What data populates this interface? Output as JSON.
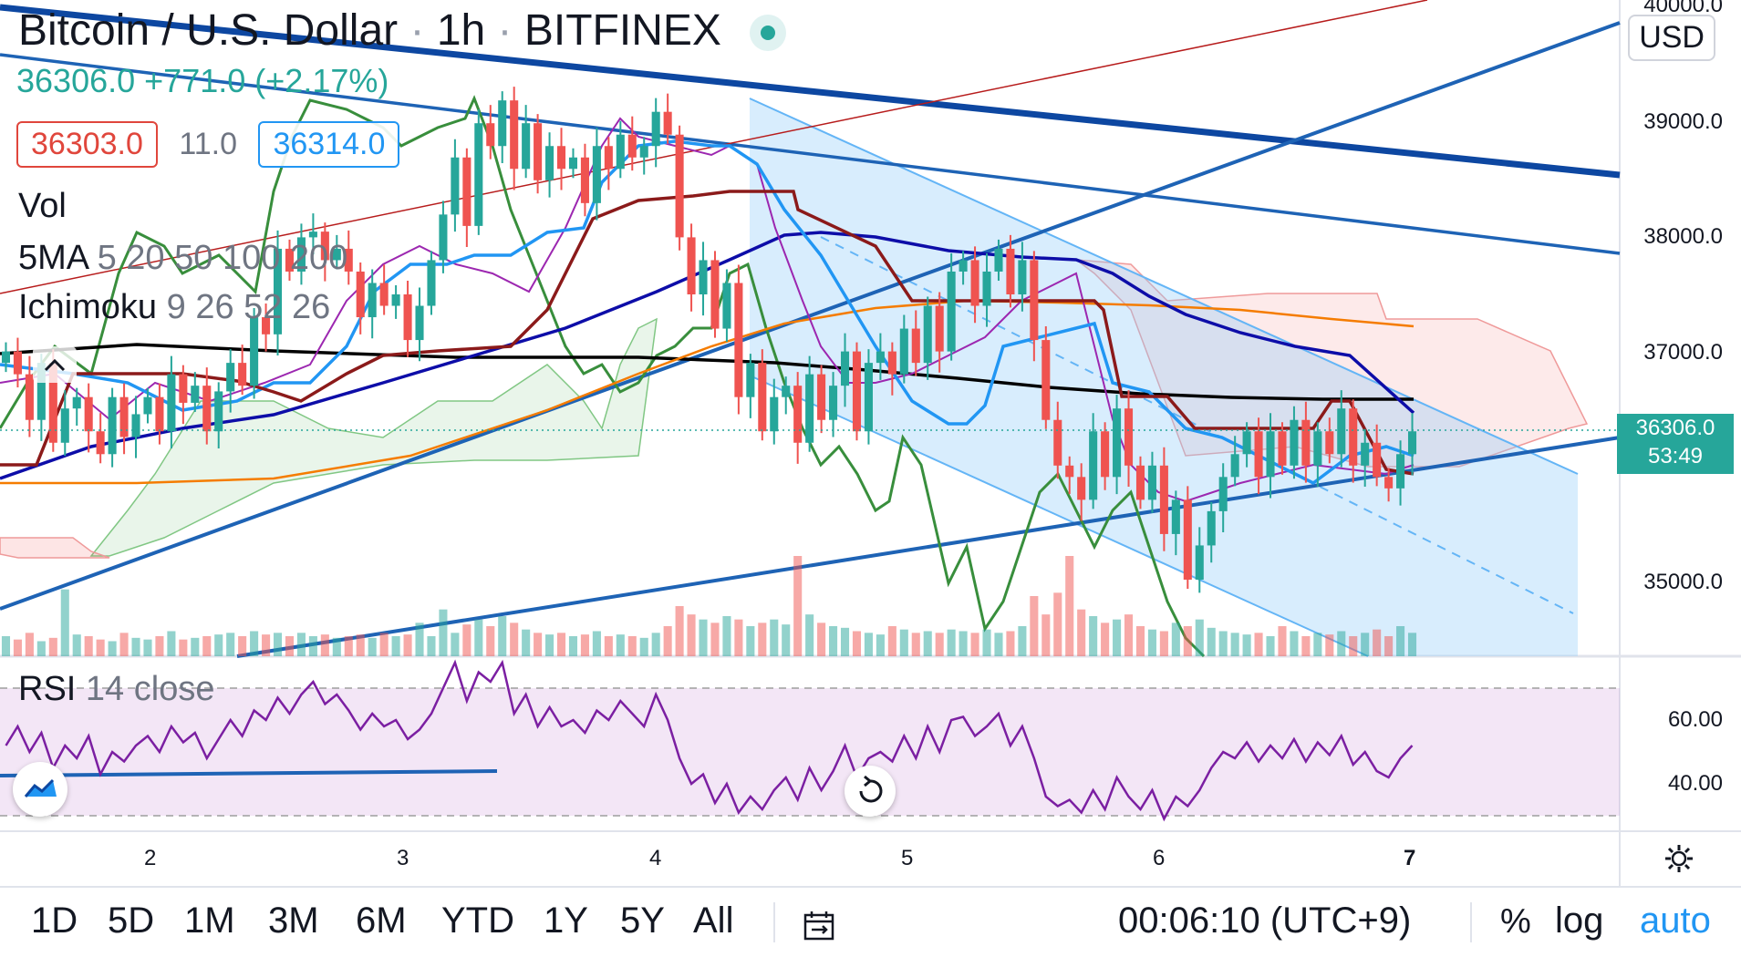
{
  "header": {
    "symbol": "Bitcoin / U.S. Dollar",
    "interval": "1h",
    "exchange": "BITFINEX",
    "sep": "·",
    "last": "36306.0",
    "change": "+771.0",
    "change_pct": "(+2.17%)",
    "bid": "36303.0",
    "spread": "11.0",
    "ask": "36314.0"
  },
  "indicators": {
    "vol": "Vol",
    "ma_name": "5MA",
    "ma_params": "5 20 50 100 200",
    "ichimoku_name": "Ichimoku",
    "ichimoku_params": "9 26 52 26",
    "rsi_name": "RSI",
    "rsi_params": "14 close"
  },
  "price_axis": {
    "currency": "USD",
    "labels": [
      "40000.0",
      "39000.0",
      "38000.0",
      "37000.0",
      "35000.0"
    ],
    "current_price": "36306.0",
    "countdown": "53:49"
  },
  "rsi_axis": {
    "labels": [
      "60.00",
      "40.00"
    ]
  },
  "time_axis": {
    "labels": [
      "2",
      "3",
      "4",
      "5",
      "6",
      "7"
    ]
  },
  "bottom_bar": {
    "timeframes": [
      "1D",
      "5D",
      "1M",
      "3M",
      "6M",
      "YTD",
      "1Y",
      "5Y",
      "All"
    ],
    "clock": "00:06:10 (UTC+9)",
    "percent": "%",
    "log": "log",
    "auto": "auto"
  },
  "colors": {
    "up": "#26a69a",
    "down": "#ef5350",
    "ma5": "#9c27b0",
    "ma20": "#0d0da8",
    "ma50": "#f57c00",
    "ma200": "#000000",
    "trendline": "#1e63b5",
    "rsi": "#7b1fa2",
    "channel_fill": "#d4e8fb"
  },
  "chart_data": {
    "type": "candlestick",
    "symbol": "BTCUSD",
    "timeframe": "1h",
    "x_axis_days": [
      "2",
      "3",
      "4",
      "5",
      "6",
      "7"
    ],
    "ylim": [
      34500,
      40000
    ],
    "y_ticks": [
      35000,
      37000,
      38000,
      39000,
      40000
    ],
    "close": [
      37000,
      36800,
      36400,
      36900,
      36200,
      36500,
      36600,
      36300,
      36100,
      36600,
      36250,
      36450,
      36600,
      36300,
      36800,
      36550,
      36700,
      36300,
      36650,
      36900,
      36700,
      37300,
      37150,
      37900,
      37700,
      38000,
      38050,
      37800,
      37900,
      37700,
      37300,
      37600,
      37400,
      37500,
      37100,
      37400,
      37800,
      38200,
      38700,
      38100,
      39000,
      38800,
      39200,
      38600,
      39000,
      38500,
      38800,
      38600,
      38700,
      38300,
      38800,
      38600,
      38900,
      38700,
      38800,
      39100,
      38900,
      38000,
      37500,
      37800,
      37200,
      37600,
      36600,
      36900,
      36300,
      36600,
      36700,
      36200,
      36800,
      36400,
      36700,
      37000,
      36300,
      36900,
      37000,
      36800,
      37200,
      36900,
      37400,
      37000,
      37700,
      37800,
      37400,
      37700,
      37900,
      37500,
      37800,
      37100,
      36400,
      36000,
      35900,
      35700,
      36300,
      35900,
      36500,
      36000,
      35700,
      36000,
      35400,
      35700,
      35000,
      35300,
      35600,
      35900,
      36100,
      36300,
      35900,
      36300,
      36000,
      36400,
      36000,
      36300,
      36100,
      36500,
      36000,
      36200,
      35900,
      35800,
      36100,
      36300
    ],
    "volume": [
      12,
      10,
      14,
      9,
      11,
      40,
      13,
      12,
      10,
      9,
      14,
      11,
      10,
      12,
      15,
      10,
      11,
      12,
      13,
      14,
      12,
      15,
      13,
      14,
      12,
      14,
      12,
      13,
      11,
      12,
      13,
      11,
      14,
      12,
      13,
      20,
      12,
      28,
      14,
      19,
      22,
      18,
      24,
      20,
      16,
      14,
      13,
      14,
      12,
      13,
      15,
      12,
      13,
      12,
      11,
      14,
      18,
      30,
      25,
      22,
      20,
      24,
      22,
      18,
      20,
      22,
      19,
      60,
      25,
      20,
      18,
      17,
      15,
      14,
      13,
      18,
      16,
      14,
      15,
      14,
      16,
      15,
      14,
      16,
      14,
      15,
      18,
      36,
      25,
      38,
      60,
      28,
      24,
      20,
      22,
      25,
      18,
      16,
      15,
      20,
      18,
      22,
      17,
      15,
      14,
      13,
      14,
      12,
      18,
      15,
      12,
      14,
      13,
      15,
      12,
      14,
      16,
      12,
      18,
      14
    ],
    "rsi": [
      52,
      58,
      50,
      56,
      45,
      52,
      48,
      55,
      43,
      50,
      47,
      52,
      55,
      50,
      58,
      53,
      56,
      48,
      54,
      60,
      55,
      63,
      60,
      67,
      62,
      68,
      72,
      65,
      68,
      63,
      57,
      62,
      58,
      60,
      54,
      57,
      62,
      70,
      78,
      66,
      75,
      72,
      78,
      62,
      68,
      58,
      64,
      58,
      60,
      56,
      63,
      60,
      66,
      62,
      58,
      68,
      60,
      48,
      40,
      43,
      34,
      40,
      31,
      36,
      32,
      38,
      42,
      35,
      45,
      38,
      44,
      52,
      42,
      48,
      50,
      47,
      55,
      48,
      58,
      50,
      60,
      61,
      55,
      58,
      62,
      52,
      58,
      48,
      36,
      33,
      35,
      31,
      38,
      32,
      42,
      36,
      32,
      38,
      29,
      36,
      33,
      38,
      45,
      50,
      48,
      53,
      47,
      52,
      48,
      54,
      47,
      53,
      49,
      55,
      46,
      50,
      44,
      42,
      48,
      52
    ],
    "rsi_levels": [
      30,
      70
    ],
    "rsi_ticks": [
      40,
      60
    ]
  }
}
